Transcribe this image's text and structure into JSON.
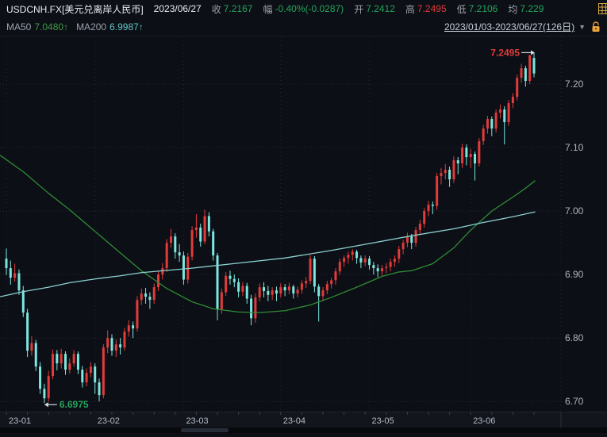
{
  "header": {
    "symbol": "USDCNH.FX[美元兑离岸人民币]",
    "date": "2023/06/27",
    "fields": [
      {
        "label": "收",
        "value": "7.2167",
        "color": "#26a35c"
      },
      {
        "label": "幅",
        "value": "-0.40%(-0.0287)",
        "color": "#26a35c"
      },
      {
        "label": "开",
        "value": "7.2412",
        "color": "#26a35c"
      },
      {
        "label": "高",
        "value": "7.2495",
        "color": "#e23b3b"
      },
      {
        "label": "低",
        "value": "7.2106",
        "color": "#26a35c"
      },
      {
        "label": "均",
        "value": "7.229",
        "color": "#26a35c"
      }
    ]
  },
  "subheader": {
    "ma_items": [
      {
        "label": "MA50",
        "value": "7.0480↑",
        "color": "#3f9945"
      },
      {
        "label": "MA200",
        "value": "6.9987↑",
        "color": "#5fc7c7"
      }
    ],
    "range": "2023/01/03-2023/06/27(126日)",
    "caret": "▼"
  },
  "chart_data": {
    "type": "candlestick",
    "title": "USDCNH.FX daily candles with MA50/MA200",
    "ylim": [
      6.684,
      7.275
    ],
    "y_ticks": [
      "7.20",
      "7.10",
      "7.00",
      "6.90",
      "6.80",
      "6.70"
    ],
    "y_tick_values": [
      7.2,
      7.1,
      7.0,
      6.9,
      6.8,
      6.7
    ],
    "legend_position": "top-left",
    "grid": "dotted",
    "colors": {
      "up": "#e23b3b",
      "down": "#7de6de",
      "ma50": "#2f8c34",
      "ma200": "#8ad1d1",
      "grid": "#252b36",
      "vgrid": "#232833",
      "axis_text": "#aeb5c0",
      "month_text": "#b6bcc6",
      "arrow": "#d6dbe2",
      "annotation_high": "#e23b3b",
      "annotation_low": "#26a35c",
      "axis_band_bg": "#12151c",
      "scroll_track": "#07090d",
      "scroll_thumb": "#272d37"
    },
    "months": [
      {
        "label": "23-01",
        "candles": [
          [
            6.925,
            6.941,
            6.899,
            6.91
          ],
          [
            6.91,
            6.922,
            6.884,
            6.895
          ],
          [
            6.895,
            6.917,
            6.889,
            6.902
          ],
          [
            6.902,
            6.908,
            6.868,
            6.875
          ],
          [
            6.875,
            6.882,
            6.833,
            6.84
          ],
          [
            6.84,
            6.846,
            6.77,
            6.78
          ],
          [
            6.78,
            6.803,
            6.772,
            6.792
          ],
          [
            6.792,
            6.797,
            6.748,
            6.755
          ],
          [
            6.755,
            6.762,
            6.712,
            6.72
          ],
          [
            6.72,
            6.728,
            6.6975,
            6.705
          ],
          [
            6.705,
            6.748,
            6.7,
            6.74
          ],
          [
            6.74,
            6.782,
            6.735,
            6.775
          ],
          [
            6.775,
            6.781,
            6.749,
            6.76
          ],
          [
            6.76,
            6.783,
            6.752,
            6.775
          ],
          [
            6.775,
            6.779,
            6.742,
            6.75
          ],
          [
            6.75,
            6.768,
            6.744,
            6.76
          ],
          [
            6.76,
            6.781,
            6.755,
            6.775
          ],
          [
            6.775,
            6.779,
            6.743,
            6.75
          ],
          [
            6.75,
            6.756,
            6.722,
            6.73
          ],
          [
            6.73,
            6.752,
            6.724,
            6.745
          ],
          [
            6.745,
            6.762,
            6.738,
            6.755
          ]
        ]
      },
      {
        "label": "23-02",
        "candles": [
          [
            6.755,
            6.76,
            6.712,
            6.73
          ],
          [
            6.73,
            6.736,
            6.7,
            6.71
          ],
          [
            6.71,
            6.79,
            6.705,
            6.785
          ],
          [
            6.785,
            6.812,
            6.776,
            6.8
          ],
          [
            6.8,
            6.806,
            6.772,
            6.78
          ],
          [
            6.78,
            6.798,
            6.77,
            6.79
          ],
          [
            6.79,
            6.8,
            6.774,
            6.785
          ],
          [
            6.785,
            6.816,
            6.78,
            6.81
          ],
          [
            6.81,
            6.828,
            6.802,
            6.82
          ],
          [
            6.82,
            6.826,
            6.8,
            6.815
          ],
          [
            6.815,
            6.866,
            6.81,
            6.86
          ],
          [
            6.86,
            6.878,
            6.852,
            6.87
          ],
          [
            6.87,
            6.879,
            6.854,
            6.865
          ],
          [
            6.865,
            6.872,
            6.846,
            6.86
          ],
          [
            6.86,
            6.886,
            6.854,
            6.88
          ],
          [
            6.88,
            6.906,
            6.874,
            6.9
          ],
          [
            6.9,
            6.918,
            6.892,
            6.91
          ],
          [
            6.91,
            6.956,
            6.904,
            6.95
          ],
          [
            6.95,
            6.972,
            6.942,
            6.96
          ],
          [
            6.96,
            6.965,
            6.925,
            6.935
          ],
          [
            6.935,
            6.948,
            6.92,
            6.93
          ]
        ]
      },
      {
        "label": "23-03",
        "candles": [
          [
            6.93,
            6.936,
            6.884,
            6.892
          ],
          [
            6.892,
            6.934,
            6.886,
            6.928
          ],
          [
            6.928,
            6.976,
            6.922,
            6.97
          ],
          [
            6.97,
            6.995,
            6.958,
            6.974
          ],
          [
            6.974,
            6.98,
            6.944,
            6.952
          ],
          [
            6.952,
            7.002,
            6.948,
            6.992
          ],
          [
            6.992,
            6.998,
            6.96,
            6.968
          ],
          [
            6.968,
            6.972,
            6.922,
            6.93
          ],
          [
            6.93,
            6.934,
            6.828,
            6.845
          ],
          [
            6.845,
            6.878,
            6.838,
            6.872
          ],
          [
            6.872,
            6.904,
            6.866,
            6.898
          ],
          [
            6.898,
            6.906,
            6.884,
            6.893
          ],
          [
            6.893,
            6.9,
            6.88,
            6.888
          ],
          [
            6.888,
            6.894,
            6.864,
            6.873
          ],
          [
            6.873,
            6.888,
            6.866,
            6.882
          ],
          [
            6.882,
            6.887,
            6.854,
            6.862
          ],
          [
            6.862,
            6.868,
            6.82,
            6.831
          ],
          [
            6.831,
            6.87,
            6.824,
            6.864
          ],
          [
            6.864,
            6.886,
            6.858,
            6.88
          ],
          [
            6.88,
            6.888,
            6.864,
            6.874
          ],
          [
            6.874,
            6.882,
            6.858,
            6.868
          ],
          [
            6.868,
            6.88,
            6.86,
            6.875
          ],
          [
            6.875,
            6.881,
            6.858,
            6.87
          ]
        ]
      },
      {
        "label": "23-04",
        "candles": [
          [
            6.87,
            6.886,
            6.864,
            6.88
          ],
          [
            6.88,
            6.885,
            6.866,
            6.875
          ],
          [
            6.875,
            6.887,
            6.869,
            6.881
          ],
          [
            6.881,
            6.884,
            6.862,
            6.87
          ],
          [
            6.87,
            6.881,
            6.864,
            6.876
          ],
          [
            6.876,
            6.891,
            6.87,
            6.886
          ],
          [
            6.886,
            6.896,
            6.879,
            6.89
          ],
          [
            6.89,
            6.931,
            6.885,
            6.925
          ],
          [
            6.925,
            6.929,
            6.872,
            6.881
          ],
          [
            6.881,
            6.885,
            6.826,
            6.866
          ],
          [
            6.866,
            6.88,
            6.858,
            6.875
          ],
          [
            6.875,
            6.89,
            6.869,
            6.885
          ],
          [
            6.885,
            6.895,
            6.878,
            6.891
          ],
          [
            6.891,
            6.91,
            6.884,
            6.905
          ],
          [
            6.905,
            6.925,
            6.899,
            6.92
          ],
          [
            6.92,
            6.93,
            6.912,
            6.926
          ],
          [
            6.926,
            6.936,
            6.917,
            6.931
          ],
          [
            6.931,
            6.94,
            6.922,
            6.936
          ],
          [
            6.936,
            6.939,
            6.917,
            6.926
          ],
          [
            6.926,
            6.93,
            6.91,
            6.919
          ],
          [
            6.919,
            6.93,
            6.913,
            6.925
          ]
        ]
      },
      {
        "label": "23-05",
        "candles": [
          [
            6.925,
            6.929,
            6.908,
            6.915
          ],
          [
            6.915,
            6.92,
            6.9,
            6.91
          ],
          [
            6.91,
            6.916,
            6.896,
            6.905
          ],
          [
            6.905,
            6.915,
            6.898,
            6.91
          ],
          [
            6.91,
            6.918,
            6.902,
            6.912
          ],
          [
            6.912,
            6.925,
            6.905,
            6.92
          ],
          [
            6.92,
            6.93,
            6.912,
            6.925
          ],
          [
            6.925,
            6.945,
            6.918,
            6.94
          ],
          [
            6.94,
            6.955,
            6.932,
            6.95
          ],
          [
            6.95,
            6.966,
            6.943,
            6.96
          ],
          [
            6.96,
            6.964,
            6.94,
            6.95
          ],
          [
            6.95,
            6.975,
            6.944,
            6.97
          ],
          [
            6.97,
            6.986,
            6.962,
            6.98
          ],
          [
            6.98,
            7.005,
            6.974,
            7.0
          ],
          [
            7.0,
            7.016,
            6.992,
            7.01
          ],
          [
            7.01,
            7.015,
            6.995,
            7.008
          ],
          [
            7.008,
            7.06,
            7.002,
            7.055
          ],
          [
            7.055,
            7.068,
            7.042,
            7.06
          ],
          [
            7.06,
            7.074,
            7.05,
            7.065
          ],
          [
            7.065,
            7.07,
            7.038,
            7.05
          ],
          [
            7.05,
            7.086,
            7.044,
            7.08
          ],
          [
            7.08,
            7.085,
            7.058,
            7.075
          ],
          [
            7.075,
            7.106,
            7.068,
            7.1
          ],
          [
            7.1,
            7.105,
            7.072,
            7.085
          ]
        ]
      },
      {
        "label": "23-06",
        "candles": [
          [
            7.085,
            7.098,
            7.068,
            7.09
          ],
          [
            7.09,
            7.094,
            7.048,
            7.075
          ],
          [
            7.075,
            7.115,
            7.07,
            7.11
          ],
          [
            7.11,
            7.136,
            7.104,
            7.13
          ],
          [
            7.13,
            7.15,
            7.122,
            7.145
          ],
          [
            7.145,
            7.149,
            7.118,
            7.13
          ],
          [
            7.13,
            7.16,
            7.124,
            7.155
          ],
          [
            7.155,
            7.168,
            7.146,
            7.16
          ],
          [
            7.16,
            7.165,
            7.105,
            7.14
          ],
          [
            7.14,
            7.175,
            7.134,
            7.17
          ],
          [
            7.17,
            7.186,
            7.162,
            7.18
          ],
          [
            7.18,
            7.215,
            7.174,
            7.21
          ],
          [
            7.21,
            7.232,
            7.202,
            7.225
          ],
          [
            7.225,
            7.229,
            7.196,
            7.205
          ],
          [
            7.205,
            7.246,
            7.2,
            7.2454
          ],
          [
            7.2412,
            7.2495,
            7.2106,
            7.2167
          ]
        ]
      }
    ],
    "ma50": [
      [
        -1.5,
        7.088
      ],
      [
        4,
        7.062
      ],
      [
        10,
        7.028
      ],
      [
        15,
        7.002
      ],
      [
        21,
        6.968
      ],
      [
        27,
        6.934
      ],
      [
        32,
        6.906
      ],
      [
        38,
        6.878
      ],
      [
        44,
        6.857
      ],
      [
        49,
        6.846
      ],
      [
        55,
        6.841
      ],
      [
        60,
        6.84
      ],
      [
        66,
        6.843
      ],
      [
        72,
        6.852
      ],
      [
        77,
        6.864
      ],
      [
        83,
        6.88
      ],
      [
        89,
        6.897
      ],
      [
        93,
        6.904
      ],
      [
        96,
        6.906
      ],
      [
        101,
        6.917
      ],
      [
        106,
        6.942
      ],
      [
        110,
        6.97
      ],
      [
        115,
        7.0
      ],
      [
        120,
        7.022
      ],
      [
        123,
        7.036
      ],
      [
        125.3,
        7.048
      ]
    ],
    "ma200": [
      [
        -1.5,
        6.865
      ],
      [
        4,
        6.873
      ],
      [
        10,
        6.88
      ],
      [
        15,
        6.887
      ],
      [
        21,
        6.893
      ],
      [
        27,
        6.898
      ],
      [
        32,
        6.903
      ],
      [
        44,
        6.91
      ],
      [
        55,
        6.918
      ],
      [
        66,
        6.926
      ],
      [
        77,
        6.938
      ],
      [
        87,
        6.95
      ],
      [
        96,
        6.961
      ],
      [
        106,
        6.972
      ],
      [
        113,
        6.982
      ],
      [
        120,
        6.991
      ],
      [
        125.3,
        6.9987
      ]
    ],
    "annotations": {
      "high": {
        "text": "7.2495",
        "index": 125,
        "price": 7.2495
      },
      "low": {
        "text": "6.6975",
        "index": 9,
        "price": 6.6975
      }
    }
  }
}
